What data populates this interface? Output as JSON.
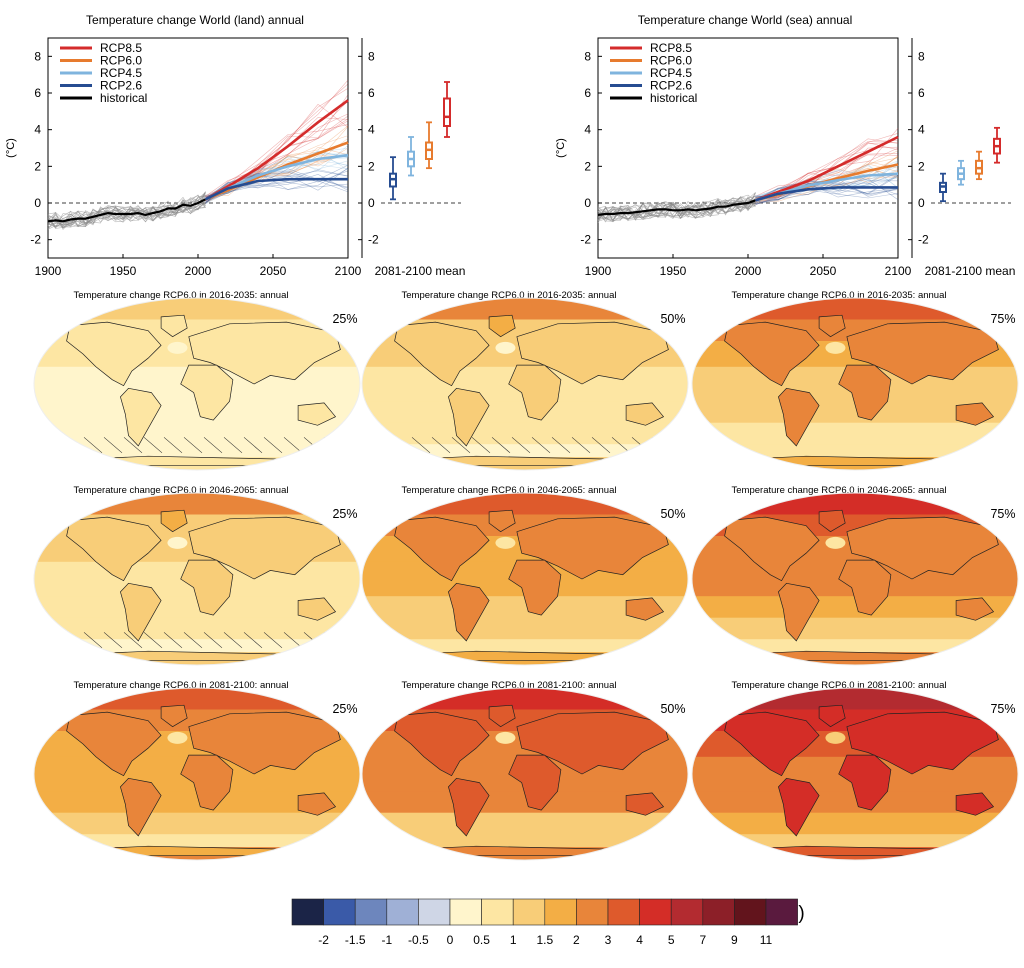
{
  "chart_data": [
    {
      "type": "line",
      "title": "Temperature change World (land) annual",
      "ylabel": "(°C)",
      "xlim": [
        1900,
        2100
      ],
      "ylim": [
        -3,
        9
      ],
      "x_ticks": [
        "1900",
        "1950",
        "2000",
        "2050",
        "2100"
      ],
      "y_ticks": [
        "-2",
        "0",
        "2",
        "4",
        "6",
        "8"
      ],
      "right_y_ticks": [
        "-2",
        "0",
        "2",
        "4",
        "6",
        "8"
      ],
      "legend_position": "top-left",
      "legend": [
        "RCP8.5",
        "RCP6.0",
        "RCP4.5",
        "RCP2.6",
        "historical"
      ],
      "series": [
        {
          "name": "historical",
          "color": "#000000",
          "x": [
            1900,
            1905,
            1910,
            1915,
            1920,
            1925,
            1930,
            1935,
            1940,
            1945,
            1950,
            1955,
            1960,
            1965,
            1970,
            1975,
            1980,
            1985,
            1990,
            1995,
            2000,
            2005
          ],
          "values": [
            -1.0,
            -0.95,
            -1.0,
            -0.9,
            -0.85,
            -0.85,
            -0.75,
            -0.65,
            -0.55,
            -0.6,
            -0.6,
            -0.6,
            -0.55,
            -0.65,
            -0.55,
            -0.45,
            -0.3,
            -0.3,
            -0.1,
            -0.15,
            0.0,
            0.2
          ]
        },
        {
          "name": "RCP8.5",
          "color": "#d42b2b",
          "x": [
            2005,
            2020,
            2040,
            2060,
            2080,
            2100
          ],
          "values": [
            0.2,
            0.9,
            1.9,
            3.1,
            4.4,
            5.6
          ]
        },
        {
          "name": "RCP6.0",
          "color": "#e77b2e",
          "x": [
            2005,
            2020,
            2040,
            2060,
            2080,
            2100
          ],
          "values": [
            0.2,
            0.7,
            1.4,
            2.1,
            2.7,
            3.3
          ]
        },
        {
          "name": "RCP4.5",
          "color": "#7fb4de",
          "x": [
            2005,
            2020,
            2040,
            2060,
            2080,
            2100
          ],
          "values": [
            0.2,
            0.8,
            1.5,
            2.0,
            2.4,
            2.6
          ]
        },
        {
          "name": "RCP2.6",
          "color": "#264c91",
          "x": [
            2005,
            2020,
            2040,
            2060,
            2080,
            2100
          ],
          "values": [
            0.2,
            0.8,
            1.2,
            1.3,
            1.3,
            1.3
          ]
        }
      ],
      "boxplot": {
        "label": "2081-2100 mean",
        "boxes": [
          {
            "series": "RCP2.6",
            "color": "#264c91",
            "whisker_low": 0.2,
            "q1": 0.9,
            "median": 1.3,
            "q3": 1.6,
            "whisker_high": 2.5
          },
          {
            "series": "RCP4.5",
            "color": "#7fb4de",
            "whisker_low": 1.5,
            "q1": 2.0,
            "median": 2.4,
            "q3": 2.8,
            "whisker_high": 3.6
          },
          {
            "series": "RCP6.0",
            "color": "#e77b2e",
            "whisker_low": 1.9,
            "q1": 2.4,
            "median": 2.9,
            "q3": 3.3,
            "whisker_high": 4.4
          },
          {
            "series": "RCP8.5",
            "color": "#d42b2b",
            "whisker_low": 3.6,
            "q1": 4.2,
            "median": 4.7,
            "q3": 5.7,
            "whisker_high": 6.6
          }
        ]
      }
    },
    {
      "type": "line",
      "title": "Temperature change World (sea) annual",
      "ylabel": "(°C)",
      "xlim": [
        1900,
        2100
      ],
      "ylim": [
        -3,
        9
      ],
      "x_ticks": [
        "1900",
        "1950",
        "2000",
        "2050",
        "2100"
      ],
      "y_ticks": [
        "-2",
        "0",
        "2",
        "4",
        "6",
        "8"
      ],
      "right_y_ticks": [
        "-2",
        "0",
        "2",
        "4",
        "6",
        "8"
      ],
      "legend_position": "top-left",
      "legend": [
        "RCP8.5",
        "RCP6.0",
        "RCP4.5",
        "RCP2.6",
        "historical"
      ],
      "series": [
        {
          "name": "historical",
          "color": "#000000",
          "x": [
            1900,
            1905,
            1910,
            1915,
            1920,
            1925,
            1930,
            1935,
            1940,
            1945,
            1950,
            1955,
            1960,
            1965,
            1970,
            1975,
            1980,
            1985,
            1990,
            1995,
            2000,
            2005
          ],
          "values": [
            -0.65,
            -0.6,
            -0.6,
            -0.55,
            -0.55,
            -0.5,
            -0.45,
            -0.4,
            -0.35,
            -0.35,
            -0.4,
            -0.4,
            -0.35,
            -0.4,
            -0.35,
            -0.3,
            -0.2,
            -0.2,
            -0.1,
            -0.05,
            0.0,
            0.15
          ]
        },
        {
          "name": "RCP8.5",
          "color": "#d42b2b",
          "x": [
            2005,
            2020,
            2040,
            2060,
            2080,
            2100
          ],
          "values": [
            0.15,
            0.6,
            1.2,
            2.0,
            2.8,
            3.6
          ]
        },
        {
          "name": "RCP6.0",
          "color": "#e77b2e",
          "x": [
            2005,
            2020,
            2040,
            2060,
            2080,
            2100
          ],
          "values": [
            0.15,
            0.45,
            0.9,
            1.35,
            1.75,
            2.1
          ]
        },
        {
          "name": "RCP4.5",
          "color": "#7fb4de",
          "x": [
            2005,
            2020,
            2040,
            2060,
            2080,
            2100
          ],
          "values": [
            0.15,
            0.5,
            0.95,
            1.25,
            1.5,
            1.6
          ]
        },
        {
          "name": "RCP2.6",
          "color": "#264c91",
          "x": [
            2005,
            2020,
            2040,
            2060,
            2080,
            2100
          ],
          "values": [
            0.15,
            0.5,
            0.75,
            0.85,
            0.85,
            0.85
          ]
        }
      ],
      "boxplot": {
        "label": "2081-2100 mean",
        "boxes": [
          {
            "series": "RCP2.6",
            "color": "#264c91",
            "whisker_low": 0.1,
            "q1": 0.6,
            "median": 0.9,
            "q3": 1.1,
            "whisker_high": 1.6
          },
          {
            "series": "RCP4.5",
            "color": "#7fb4de",
            "whisker_low": 1.0,
            "q1": 1.3,
            "median": 1.6,
            "q3": 1.9,
            "whisker_high": 2.3
          },
          {
            "series": "RCP6.0",
            "color": "#e77b2e",
            "whisker_low": 1.3,
            "q1": 1.6,
            "median": 1.9,
            "q3": 2.3,
            "whisker_high": 2.8
          },
          {
            "series": "RCP8.5",
            "color": "#d42b2b",
            "whisker_low": 2.2,
            "q1": 2.7,
            "median": 3.1,
            "q3": 3.5,
            "whisker_high": 4.1
          }
        ]
      }
    },
    {
      "type": "heatmap",
      "maps": [
        {
          "title": "Temperature change RCP6.0 in 2016-2035: annual",
          "percentile": "25%",
          "period": "2016-2035",
          "level": 0.5
        },
        {
          "title": "Temperature change RCP6.0 in 2016-2035: annual",
          "percentile": "50%",
          "period": "2016-2035",
          "level": 1.0
        },
        {
          "title": "Temperature change RCP6.0 in 2016-2035: annual",
          "percentile": "75%",
          "period": "2016-2035",
          "level": 1.5
        },
        {
          "title": "Temperature change RCP6.0 in 2046-2065: annual",
          "percentile": "25%",
          "period": "2046-2065",
          "level": 1.0
        },
        {
          "title": "Temperature change RCP6.0 in 2046-2065: annual",
          "percentile": "50%",
          "period": "2046-2065",
          "level": 1.6
        },
        {
          "title": "Temperature change RCP6.0 in 2046-2065: annual",
          "percentile": "75%",
          "period": "2046-2065",
          "level": 2.2
        },
        {
          "title": "Temperature change RCP6.0 in 2081-2100: annual",
          "percentile": "25%",
          "period": "2081-2100",
          "level": 1.7
        },
        {
          "title": "Temperature change RCP6.0 in 2081-2100: annual",
          "percentile": "50%",
          "period": "2081-2100",
          "level": 2.3
        },
        {
          "title": "Temperature change RCP6.0 in 2081-2100: annual",
          "percentile": "75%",
          "period": "2081-2100",
          "level": 3.0
        }
      ],
      "colorbar": {
        "unit": "(˚C)",
        "tick_labels": [
          "-2",
          "-1.5",
          "-1",
          "-0.5",
          "0",
          "0.5",
          "1",
          "1.5",
          "2",
          "3",
          "4",
          "5",
          "7",
          "9",
          "11"
        ],
        "colors": [
          "#1b2447",
          "#3a5aa8",
          "#6d86bd",
          "#9fb0d6",
          "#cfd6e6",
          "#fff5cc",
          "#fde6a3",
          "#f8cd78",
          "#f3ae45",
          "#e8853a",
          "#de5a2c",
          "#d42d27",
          "#b32b30",
          "#8c1f28",
          "#62141c",
          "#5a1a3e"
        ]
      }
    }
  ]
}
